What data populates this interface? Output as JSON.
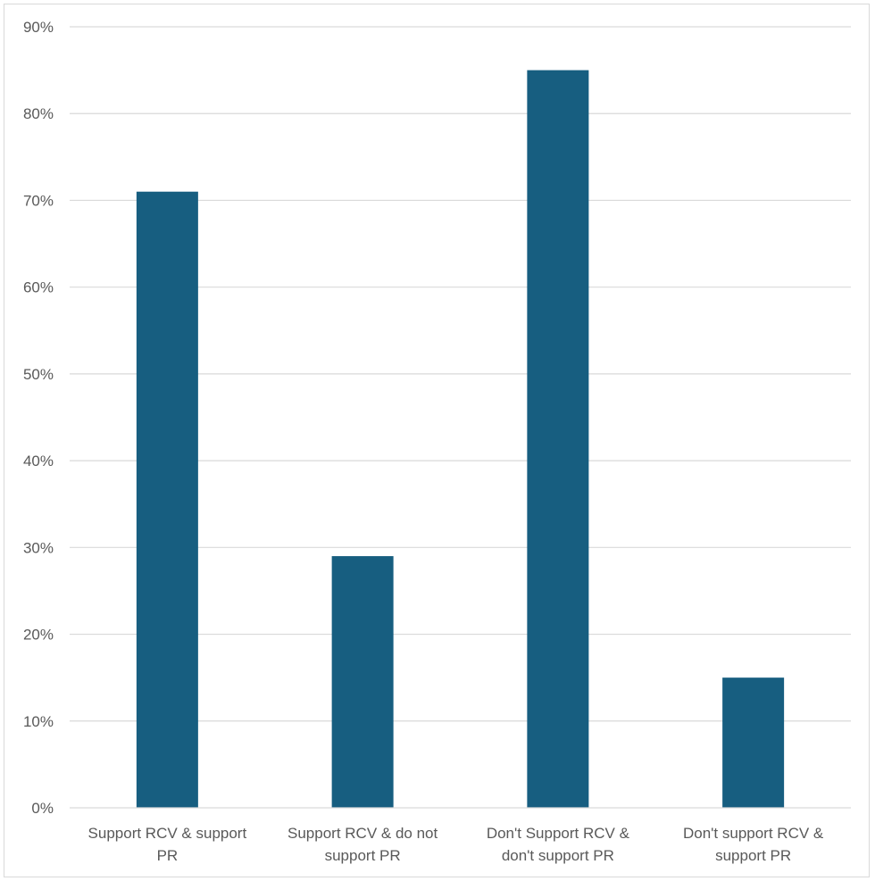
{
  "chart_data": {
    "type": "bar",
    "title": "",
    "xlabel": "",
    "ylabel": "",
    "categories": [
      [
        "Support RCV & support",
        "PR"
      ],
      [
        "Support RCV & do not",
        "support PR"
      ],
      [
        "Don't Support RCV &",
        "don't support PR"
      ],
      [
        "Don't support RCV &",
        "support PR"
      ]
    ],
    "values": [
      71,
      29,
      85,
      15
    ],
    "value_unit": "%",
    "ylim": [
      0,
      90
    ],
    "yticks": [
      0,
      10,
      20,
      30,
      40,
      50,
      60,
      70,
      80,
      90
    ],
    "ytick_labels": [
      "0%",
      "10%",
      "20%",
      "30%",
      "40%",
      "50%",
      "60%",
      "70%",
      "80%",
      "90%"
    ],
    "grid": true,
    "legend": "none",
    "colors": {
      "bar": "#175e80",
      "grid": "#d9d9d9",
      "text": "#595959"
    }
  }
}
